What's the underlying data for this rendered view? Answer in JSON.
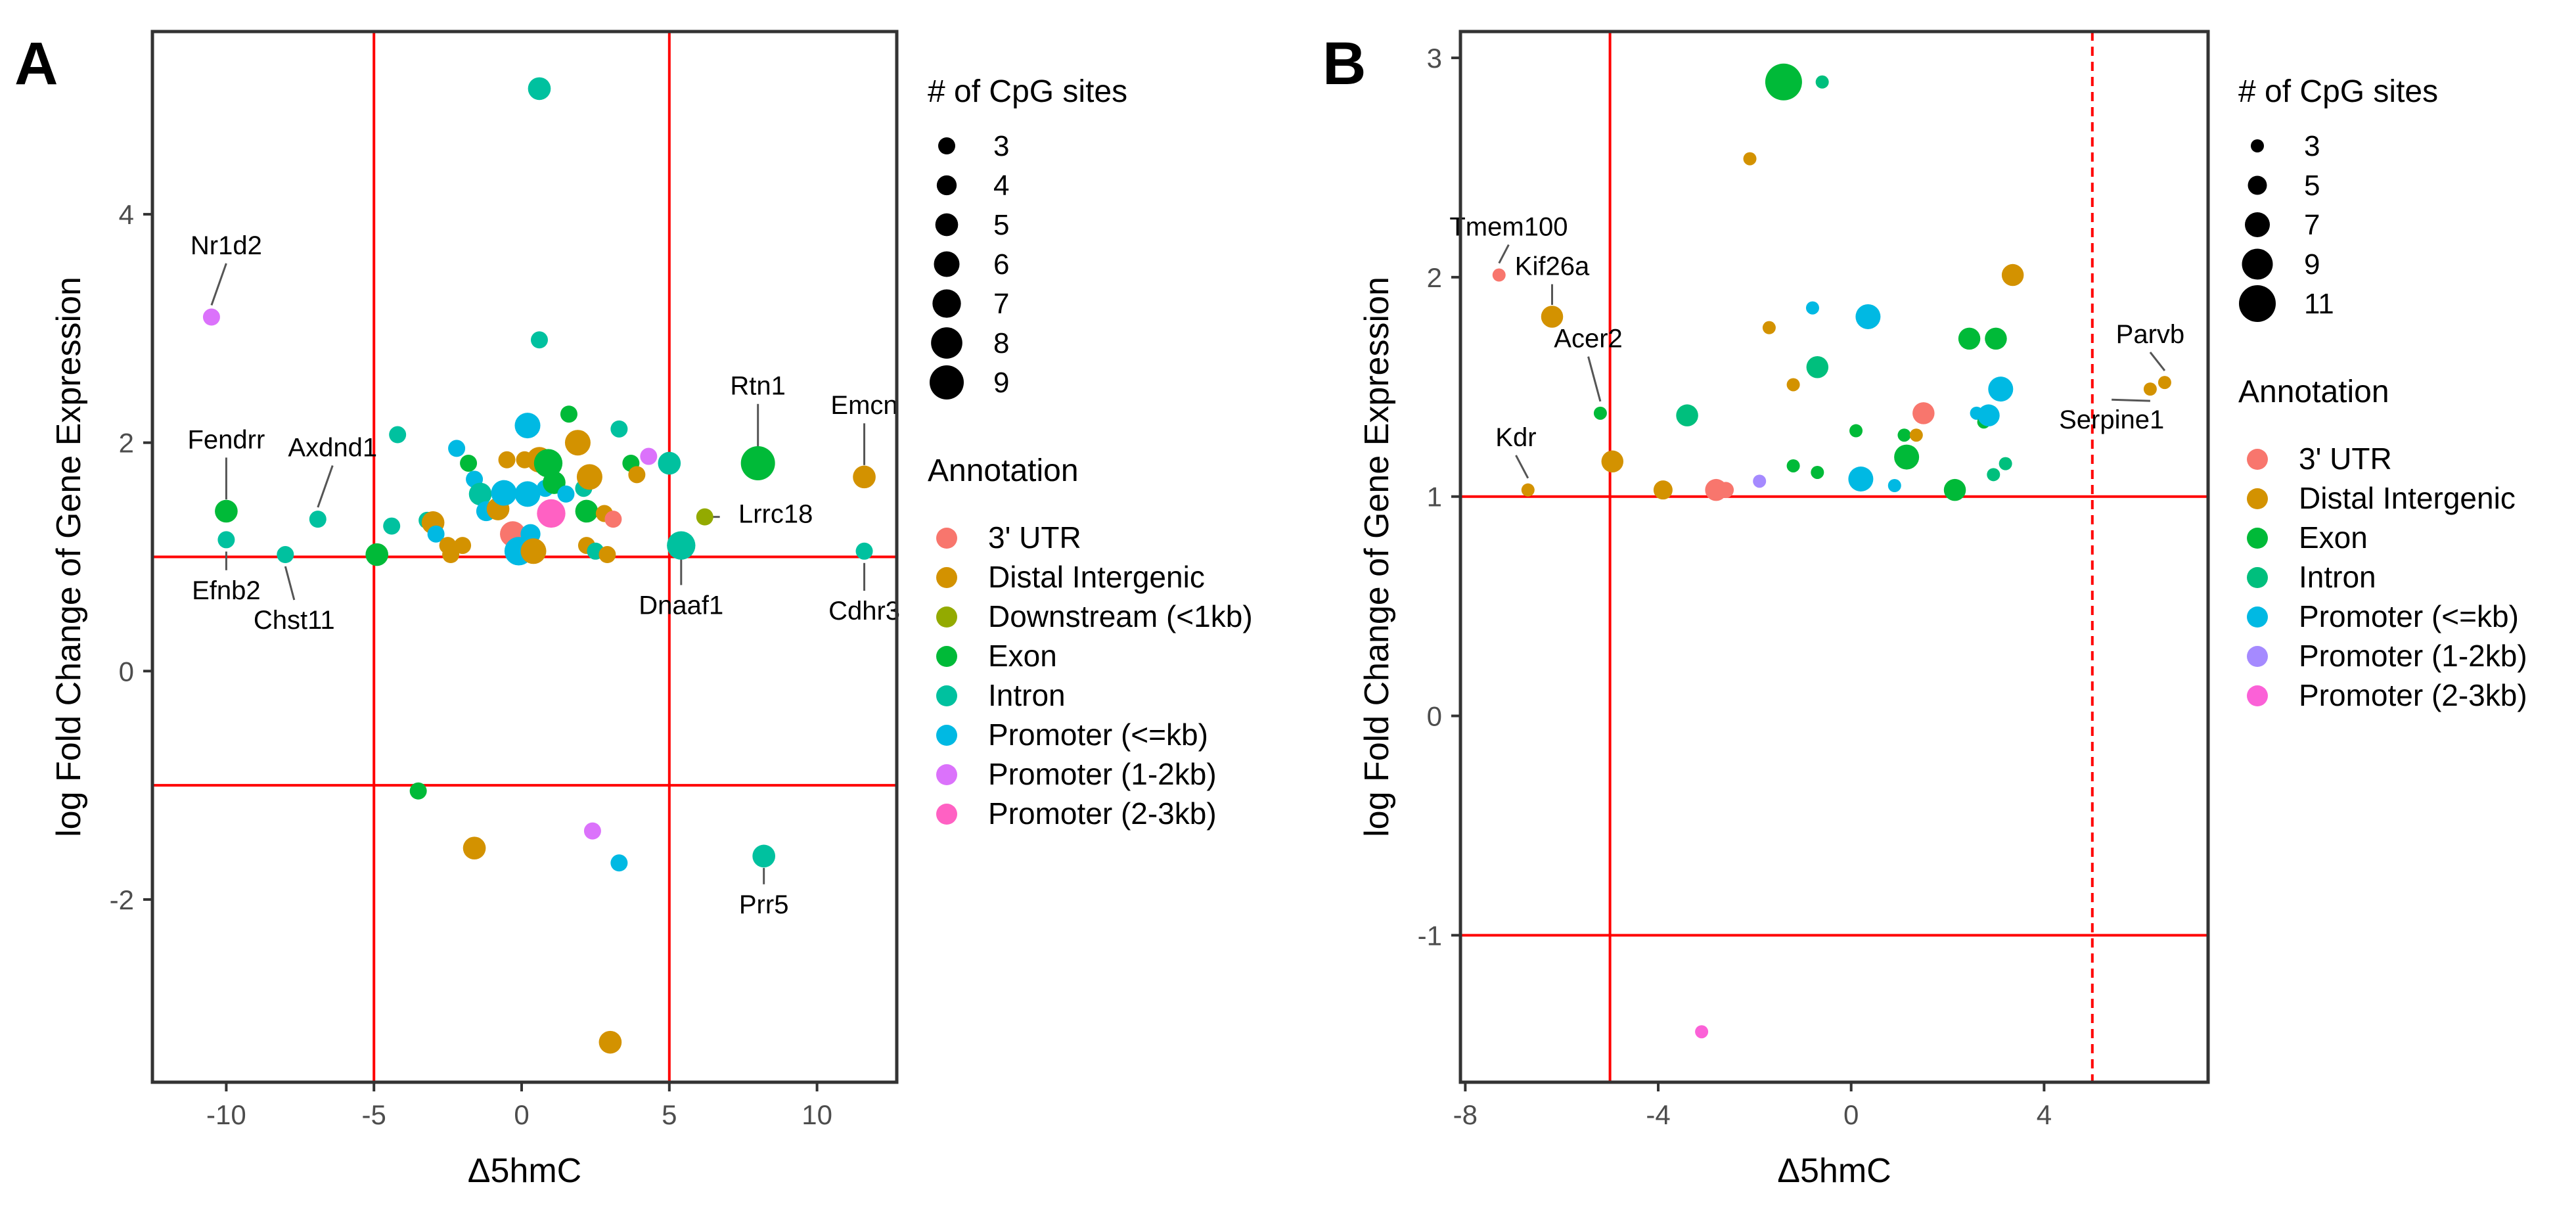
{
  "colors": {
    "3' UTR": "#F8766D",
    "Distal Intergenic": "#D39200",
    "Downstream (<1kb)": "#93AA00",
    "Exon": "#00BA38",
    "Intron": "#00C19F",
    "Promoter (<=kb)": "#00B9E3",
    "Promoter (1-2kb)": "#DB72FB",
    "Promoter (2-3kb)": "#FF61C3",
    "Exon_B": "#00BA38",
    "Intron_B": "#00BF7D",
    "Promoter (1-2kb)_B": "#A58AFF",
    "Promoter (2-3kb)_B": "#FB61D7",
    "refline": "#FF0000",
    "axis": "#333333",
    "label_line": "#555555"
  },
  "chart_data": [
    {
      "panel": "A",
      "type": "scatter",
      "xlabel": "Δ5hmC",
      "ylabel": "log Fold Change of Gene Expression",
      "xlim": [
        -12.5,
        12.7
      ],
      "ylim": [
        -3.6,
        5.6
      ],
      "xticks": [
        -10,
        -5,
        0,
        5,
        10
      ],
      "yticks": [
        -2,
        0,
        2,
        4
      ],
      "xtick_labels": [
        "-10",
        "-5",
        "0",
        "5",
        "10"
      ],
      "ytick_labels": [
        "-2",
        "0",
        "2",
        "4"
      ],
      "hlines": [
        1,
        -1
      ],
      "vlines": [
        -5,
        5
      ],
      "size_legend_title": "# of CpG sites",
      "size_legend": [
        3,
        4,
        5,
        6,
        7,
        8,
        9
      ],
      "size_legend_labels": [
        "3",
        "4",
        "5",
        "6",
        "7",
        "8",
        "9"
      ],
      "size_range": [
        3,
        9
      ],
      "annotation_title": "Annotation",
      "annotations": [
        "3' UTR",
        "Distal Intergenic",
        "Downstream (<1kb)",
        "Exon",
        "Intron",
        "Promoter (<=kb)",
        "Promoter (1-2kb)",
        "Promoter (2-3kb)"
      ],
      "points": [
        {
          "x": -10.5,
          "y": 3.1,
          "s": 3,
          "c": "Promoter (1-2kb)"
        },
        {
          "x": -10.0,
          "y": 1.4,
          "s": 5,
          "c": "Exon"
        },
        {
          "x": -10.0,
          "y": 1.15,
          "s": 3,
          "c": "Intron"
        },
        {
          "x": -8.0,
          "y": 1.02,
          "s": 3,
          "c": "Intron"
        },
        {
          "x": -6.9,
          "y": 1.33,
          "s": 3,
          "c": "Intron"
        },
        {
          "x": -4.9,
          "y": 1.02,
          "s": 5,
          "c": "Exon"
        },
        {
          "x": -4.4,
          "y": 1.27,
          "s": 3,
          "c": "Intron"
        },
        {
          "x": -4.2,
          "y": 2.07,
          "s": 3,
          "c": "Intron"
        },
        {
          "x": -3.2,
          "y": 1.32,
          "s": 3,
          "c": "Intron"
        },
        {
          "x": -3.0,
          "y": 1.3,
          "s": 5,
          "c": "Distal Intergenic"
        },
        {
          "x": -2.9,
          "y": 1.2,
          "s": 3,
          "c": "Promoter (<=kb)"
        },
        {
          "x": -2.5,
          "y": 1.1,
          "s": 3,
          "c": "Distal Intergenic"
        },
        {
          "x": -2.4,
          "y": 1.02,
          "s": 3,
          "c": "Distal Intergenic"
        },
        {
          "x": -2.2,
          "y": 1.95,
          "s": 3,
          "c": "Promoter (<=kb)"
        },
        {
          "x": -2.0,
          "y": 1.1,
          "s": 3,
          "c": "Distal Intergenic"
        },
        {
          "x": -1.8,
          "y": 1.82,
          "s": 3,
          "c": "Exon"
        },
        {
          "x": -1.6,
          "y": 1.68,
          "s": 3,
          "c": "Promoter (<=kb)"
        },
        {
          "x": -1.4,
          "y": 1.55,
          "s": 5,
          "c": "Intron"
        },
        {
          "x": -1.2,
          "y": 1.4,
          "s": 4,
          "c": "Promoter (<=kb)"
        },
        {
          "x": -0.8,
          "y": 1.42,
          "s": 5,
          "c": "Distal Intergenic"
        },
        {
          "x": -0.6,
          "y": 1.56,
          "s": 6,
          "c": "Promoter (<=kb)"
        },
        {
          "x": -0.5,
          "y": 1.85,
          "s": 3,
          "c": "Distal Intergenic"
        },
        {
          "x": -0.3,
          "y": 1.2,
          "s": 6,
          "c": "3' UTR"
        },
        {
          "x": -0.1,
          "y": 1.05,
          "s": 7,
          "c": "Promoter (<=kb)"
        },
        {
          "x": 0.1,
          "y": 1.85,
          "s": 3,
          "c": "Distal Intergenic"
        },
        {
          "x": 0.2,
          "y": 1.55,
          "s": 6,
          "c": "Promoter (<=kb)"
        },
        {
          "x": 0.3,
          "y": 1.2,
          "s": 4,
          "c": "Promoter (<=kb)"
        },
        {
          "x": 0.4,
          "y": 1.05,
          "s": 6,
          "c": "Distal Intergenic"
        },
        {
          "x": 0.6,
          "y": 2.9,
          "s": 3,
          "c": "Intron"
        },
        {
          "x": 0.6,
          "y": 1.85,
          "s": 6,
          "c": "Distal Intergenic"
        },
        {
          "x": 0.2,
          "y": 2.15,
          "s": 6,
          "c": "Promoter (<=kb)"
        },
        {
          "x": 0.6,
          "y": 5.1,
          "s": 5,
          "c": "Intron"
        },
        {
          "x": 0.8,
          "y": 1.6,
          "s": 3,
          "c": "Promoter (<=kb)"
        },
        {
          "x": 0.9,
          "y": 1.82,
          "s": 7,
          "c": "Exon"
        },
        {
          "x": 1.0,
          "y": 1.38,
          "s": 7,
          "c": "Promoter (2-3kb)"
        },
        {
          "x": 1.1,
          "y": 1.65,
          "s": 5,
          "c": "Exon"
        },
        {
          "x": 1.5,
          "y": 1.55,
          "s": 3,
          "c": "Promoter (<=kb)"
        },
        {
          "x": 1.6,
          "y": 2.25,
          "s": 3,
          "c": "Exon"
        },
        {
          "x": 1.9,
          "y": 2.0,
          "s": 6,
          "c": "Distal Intergenic"
        },
        {
          "x": 2.1,
          "y": 1.6,
          "s": 3,
          "c": "Intron"
        },
        {
          "x": 2.2,
          "y": 1.4,
          "s": 5,
          "c": "Exon"
        },
        {
          "x": 2.3,
          "y": 1.7,
          "s": 6,
          "c": "Distal Intergenic"
        },
        {
          "x": 2.2,
          "y": 1.1,
          "s": 3,
          "c": "Distal Intergenic"
        },
        {
          "x": 2.5,
          "y": 1.05,
          "s": 3,
          "c": "Intron"
        },
        {
          "x": 2.8,
          "y": 1.38,
          "s": 3,
          "c": "Distal Intergenic"
        },
        {
          "x": 2.9,
          "y": 1.02,
          "s": 3,
          "c": "Distal Intergenic"
        },
        {
          "x": 3.1,
          "y": 1.33,
          "s": 3,
          "c": "3' UTR"
        },
        {
          "x": 3.3,
          "y": 2.12,
          "s": 3,
          "c": "Intron"
        },
        {
          "x": 3.7,
          "y": 1.82,
          "s": 3,
          "c": "Exon"
        },
        {
          "x": 3.9,
          "y": 1.72,
          "s": 3,
          "c": "Distal Intergenic"
        },
        {
          "x": 4.3,
          "y": 1.88,
          "s": 3,
          "c": "Promoter (1-2kb)"
        },
        {
          "x": 5.0,
          "y": 1.82,
          "s": 5,
          "c": "Intron"
        },
        {
          "x": 5.4,
          "y": 1.1,
          "s": 7,
          "c": "Intron"
        },
        {
          "x": 6.2,
          "y": 1.35,
          "s": 3,
          "c": "Downstream (<1kb)"
        },
        {
          "x": 8.0,
          "y": 1.82,
          "s": 9,
          "c": "Exon"
        },
        {
          "x": 11.6,
          "y": 1.7,
          "s": 5,
          "c": "Distal Intergenic"
        },
        {
          "x": 11.6,
          "y": 1.05,
          "s": 3,
          "c": "Intron"
        },
        {
          "x": -3.5,
          "y": -1.05,
          "s": 3,
          "c": "Exon"
        },
        {
          "x": -1.6,
          "y": -1.55,
          "s": 5,
          "c": "Distal Intergenic"
        },
        {
          "x": 2.4,
          "y": -1.4,
          "s": 3,
          "c": "Promoter (1-2kb)"
        },
        {
          "x": 3.3,
          "y": -1.68,
          "s": 3,
          "c": "Promoter (<=kb)"
        },
        {
          "x": 8.2,
          "y": -1.62,
          "s": 5,
          "c": "Intron"
        },
        {
          "x": 3.0,
          "y": -3.25,
          "s": 5,
          "c": "Distal Intergenic"
        }
      ],
      "labels": [
        {
          "text": "Nr1d2",
          "x": -10.5,
          "y": 3.1,
          "dx": 0.5,
          "dy": 0.55,
          "anchor": "middle"
        },
        {
          "text": "Fendrr",
          "x": -10.0,
          "y": 1.4,
          "dx": 0.0,
          "dy": 0.55,
          "anchor": "middle"
        },
        {
          "text": "Efnb2",
          "x": -10.0,
          "y": 1.15,
          "dx": 0.0,
          "dy": -0.52,
          "anchor": "middle"
        },
        {
          "text": "Axdnd1",
          "x": -6.9,
          "y": 1.33,
          "dx": 0.5,
          "dy": 0.55,
          "anchor": "middle"
        },
        {
          "text": "Chst11",
          "x": -8.0,
          "y": 1.02,
          "dx": 0.3,
          "dy": -0.65,
          "anchor": "middle"
        },
        {
          "text": "Rtn1",
          "x": 8.0,
          "y": 1.82,
          "dx": 0.0,
          "dy": 0.6,
          "anchor": "middle"
        },
        {
          "text": "Emcn",
          "x": 11.6,
          "y": 1.7,
          "dx": 0.0,
          "dy": 0.55,
          "anchor": "middle"
        },
        {
          "text": "Lrrc18",
          "x": 6.2,
          "y": 1.35,
          "dx": 2.4,
          "dy": -0.05,
          "anchor": "middle"
        },
        {
          "text": "Dnaaf1",
          "x": 5.4,
          "y": 1.1,
          "dx": 0.0,
          "dy": -0.6,
          "anchor": "middle"
        },
        {
          "text": "Cdhr3",
          "x": 11.6,
          "y": 1.05,
          "dx": 0.0,
          "dy": -0.6,
          "anchor": "middle"
        },
        {
          "text": "Prr5",
          "x": 8.2,
          "y": -1.62,
          "dx": 0.0,
          "dy": -0.5,
          "anchor": "middle"
        }
      ]
    },
    {
      "panel": "B",
      "type": "scatter",
      "xlabel": "Δ5hmC",
      "ylabel": "log Fold Change of Gene Expression",
      "xlim": [
        -8.1,
        7.4
      ],
      "ylim": [
        -1.67,
        3.12
      ],
      "xticks": [
        -8,
        -4,
        0,
        4
      ],
      "yticks": [
        -1,
        0,
        1,
        2,
        3
      ],
      "xtick_labels": [
        "-8",
        "-4",
        "0",
        "4"
      ],
      "ytick_labels": [
        "-1",
        "0",
        "1",
        "2",
        "3"
      ],
      "hlines": [
        1,
        -1
      ],
      "vlines": [
        -5
      ],
      "dashed_vlines": [
        5
      ],
      "size_legend_title": "# of CpG sites",
      "size_legend": [
        3,
        5,
        7,
        9,
        11
      ],
      "size_legend_labels": [
        "3",
        "5",
        "7",
        "9",
        "11"
      ],
      "size_range": [
        3,
        11
      ],
      "annotation_title": "Annotation",
      "annotations": [
        "3' UTR",
        "Distal Intergenic",
        "Exon_B",
        "Intron_B",
        "Promoter (<=kb)",
        "Promoter (1-2kb)_B",
        "Promoter (2-3kb)_B"
      ],
      "annotation_labels": [
        "3' UTR",
        "Distal Intergenic",
        "Exon",
        "Intron",
        "Promoter (<=kb)",
        "Promoter (1-2kb)",
        "Promoter (2-3kb)"
      ],
      "points": [
        {
          "x": -7.3,
          "y": 2.01,
          "s": 3,
          "c": "3' UTR"
        },
        {
          "x": -6.2,
          "y": 1.82,
          "s": 6,
          "c": "Distal Intergenic"
        },
        {
          "x": -6.7,
          "y": 1.03,
          "s": 3,
          "c": "Distal Intergenic"
        },
        {
          "x": -5.2,
          "y": 1.38,
          "s": 3,
          "c": "Exon_B"
        },
        {
          "x": -4.95,
          "y": 1.16,
          "s": 6,
          "c": "Distal Intergenic"
        },
        {
          "x": -3.9,
          "y": 1.03,
          "s": 5,
          "c": "Distal Intergenic"
        },
        {
          "x": -3.4,
          "y": 1.37,
          "s": 6,
          "c": "Intron_B"
        },
        {
          "x": -2.8,
          "y": 1.03,
          "s": 6,
          "c": "3' UTR"
        },
        {
          "x": -2.6,
          "y": 1.03,
          "s": 4,
          "c": "3' UTR"
        },
        {
          "x": -2.1,
          "y": 2.54,
          "s": 3,
          "c": "Distal Intergenic"
        },
        {
          "x": -1.9,
          "y": 1.07,
          "s": 3,
          "c": "Promoter (1-2kb)_B"
        },
        {
          "x": -1.7,
          "y": 1.77,
          "s": 3,
          "c": "Distal Intergenic"
        },
        {
          "x": -1.4,
          "y": 2.89,
          "s": 11,
          "c": "Exon_B"
        },
        {
          "x": -1.2,
          "y": 1.14,
          "s": 3,
          "c": "Exon_B"
        },
        {
          "x": -1.2,
          "y": 1.51,
          "s": 3,
          "c": "Distal Intergenic"
        },
        {
          "x": -0.8,
          "y": 1.86,
          "s": 3,
          "c": "Promoter (<=kb)"
        },
        {
          "x": -0.7,
          "y": 1.59,
          "s": 6,
          "c": "Intron_B"
        },
        {
          "x": -0.7,
          "y": 1.11,
          "s": 3,
          "c": "Exon_B"
        },
        {
          "x": -0.6,
          "y": 2.89,
          "s": 3,
          "c": "Intron_B"
        },
        {
          "x": 0.1,
          "y": 1.3,
          "s": 3,
          "c": "Exon_B"
        },
        {
          "x": 0.2,
          "y": 1.08,
          "s": 7,
          "c": "Promoter (<=kb)"
        },
        {
          "x": 0.35,
          "y": 1.82,
          "s": 7,
          "c": "Promoter (<=kb)"
        },
        {
          "x": 0.9,
          "y": 1.05,
          "s": 3,
          "c": "Promoter (<=kb)"
        },
        {
          "x": 1.1,
          "y": 1.28,
          "s": 3,
          "c": "Exon_B"
        },
        {
          "x": 1.15,
          "y": 1.18,
          "s": 7,
          "c": "Exon_B"
        },
        {
          "x": 1.35,
          "y": 1.28,
          "s": 3,
          "c": "Distal Intergenic"
        },
        {
          "x": 1.5,
          "y": 1.38,
          "s": 6,
          "c": "3' UTR"
        },
        {
          "x": 2.15,
          "y": 1.03,
          "s": 6,
          "c": "Exon_B"
        },
        {
          "x": 2.45,
          "y": 1.72,
          "s": 6,
          "c": "Exon_B"
        },
        {
          "x": 2.6,
          "y": 1.38,
          "s": 3,
          "c": "Promoter (<=kb)"
        },
        {
          "x": 2.75,
          "y": 1.34,
          "s": 3,
          "c": "Exon_B"
        },
        {
          "x": 2.85,
          "y": 1.37,
          "s": 6,
          "c": "Promoter (<=kb)"
        },
        {
          "x": 2.95,
          "y": 1.1,
          "s": 3,
          "c": "Intron_B"
        },
        {
          "x": 3.0,
          "y": 1.72,
          "s": 6,
          "c": "Exon_B"
        },
        {
          "x": 3.1,
          "y": 1.49,
          "s": 7,
          "c": "Promoter (<=kb)"
        },
        {
          "x": 3.2,
          "y": 1.15,
          "s": 3,
          "c": "Intron_B"
        },
        {
          "x": 3.35,
          "y": 2.01,
          "s": 6,
          "c": "Distal Intergenic"
        },
        {
          "x": 6.2,
          "y": 1.49,
          "s": 3,
          "c": "Distal Intergenic"
        },
        {
          "x": 6.5,
          "y": 1.52,
          "s": 3,
          "c": "Distal Intergenic"
        },
        {
          "x": -3.1,
          "y": -1.44,
          "s": 3,
          "c": "Promoter (2-3kb)_B"
        }
      ],
      "labels": [
        {
          "text": "Tmem100",
          "x": -7.3,
          "y": 2.01,
          "dx": 0.2,
          "dy": 0.18,
          "anchor": "middle"
        },
        {
          "text": "Kif26a",
          "x": -6.2,
          "y": 1.82,
          "dx": 0.0,
          "dy": 0.19,
          "anchor": "middle"
        },
        {
          "text": "Acer2",
          "x": -5.2,
          "y": 1.38,
          "dx": -0.25,
          "dy": 0.3,
          "anchor": "middle"
        },
        {
          "text": "Kdr",
          "x": -6.7,
          "y": 1.03,
          "dx": -0.25,
          "dy": 0.2,
          "anchor": "middle"
        },
        {
          "text": "Parvb",
          "x": 6.5,
          "y": 1.52,
          "dx": -0.3,
          "dy": 0.18,
          "anchor": "middle"
        },
        {
          "text": "Serpine1",
          "x": 6.2,
          "y": 1.49,
          "dx": -0.8,
          "dy": -0.18,
          "anchor": "middle"
        }
      ]
    }
  ],
  "panel_letters": [
    "A",
    "B"
  ]
}
